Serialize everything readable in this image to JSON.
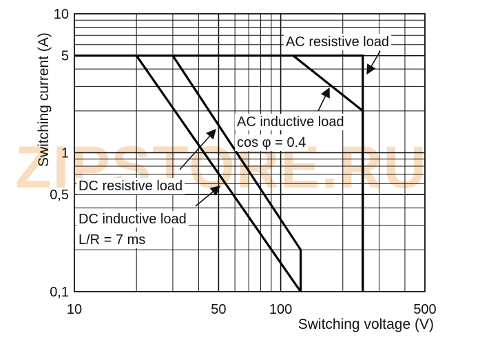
{
  "chart_data": {
    "type": "line",
    "title": "",
    "xlabel": "Switching voltage (V)",
    "ylabel": "Switching current (A)",
    "x_scale": "log",
    "y_scale": "log",
    "xlim": [
      10,
      500
    ],
    "ylim": [
      0.1,
      10
    ],
    "x_tick_labels": [
      {
        "value": 10,
        "label": "10"
      },
      {
        "value": 50,
        "label": "50"
      },
      {
        "value": 100,
        "label": "100"
      },
      {
        "value": 500,
        "label": "500"
      }
    ],
    "y_tick_labels": [
      {
        "value": 10,
        "label": "10"
      },
      {
        "value": 5,
        "label": "5"
      },
      {
        "value": 1,
        "label": "1"
      },
      {
        "value": 0.5,
        "label": "0,5"
      },
      {
        "value": 0.1,
        "label": "0,1"
      }
    ],
    "grid": true,
    "series": [
      {
        "name": "AC resistive load",
        "points": [
          [
            10,
            5
          ],
          [
            250,
            5
          ],
          [
            250,
            0.1
          ]
        ]
      },
      {
        "name": "AC inductive load cos φ = 0.4",
        "points": [
          [
            115,
            5
          ],
          [
            250,
            2
          ],
          [
            250,
            0.1
          ]
        ]
      },
      {
        "name": "DC resistive load",
        "points": [
          [
            30,
            5
          ],
          [
            125,
            0.2
          ],
          [
            125,
            0.1
          ]
        ]
      },
      {
        "name": "DC inductive load L/R = 7 ms",
        "points": [
          [
            20,
            5
          ],
          [
            125,
            0.1
          ]
        ]
      }
    ],
    "annotations": [
      {
        "lines": [
          "AC resistive load"
        ]
      },
      {
        "lines": [
          "AC inductive load",
          "cos φ = 0.4"
        ]
      },
      {
        "lines": [
          "DC resistive load"
        ]
      },
      {
        "lines": [
          "DC inductive load",
          "L/R = 7 ms"
        ]
      }
    ],
    "watermark": "ZIPSTORE.RU"
  }
}
